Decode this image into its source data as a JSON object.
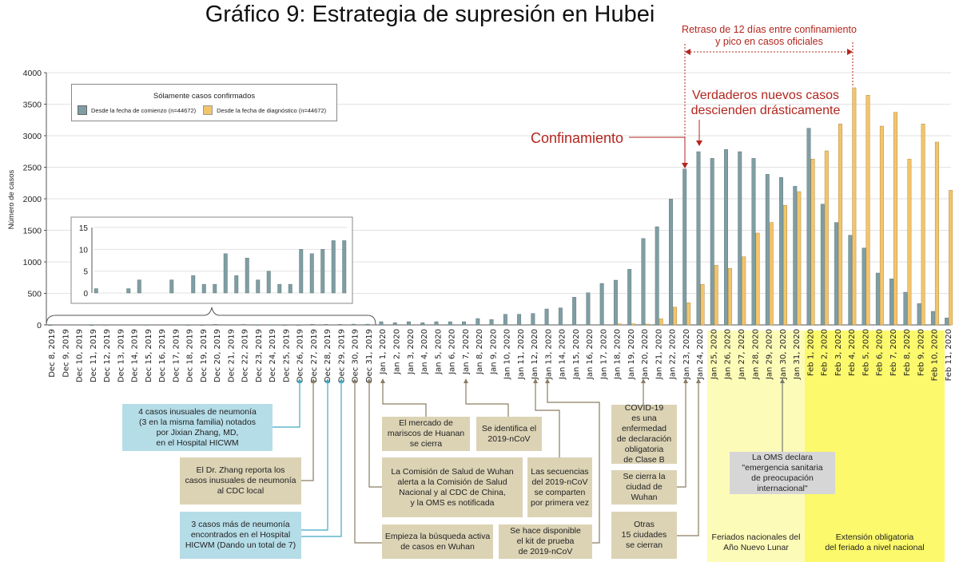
{
  "title": "Gráfico 9: Estrategia de supresión en Hubei",
  "annotations": {
    "delay": "Retraso de 12 días entre confinamiento\ny pico en casos oficiales",
    "lockdown": "Confinamiento",
    "drop": "Verdaderos nuevos casos\ndescienden drásticamente"
  },
  "legend": {
    "title": "Sólamente casos confirmados",
    "items": [
      "Desde la fecha de comienzo (n=44672)",
      "Desde la fecha de diagnóstico (n=44672)"
    ]
  },
  "colors": {
    "onset": "#7f9ea3",
    "diagnosis": "#f3c46b",
    "accent": "#b3261e",
    "lunar_band": "#fdfbb8",
    "extension_band": "#fcf96c"
  },
  "events": [
    {
      "text": "4 casos inusuales de neumonía\n(3 en la misma familia) notados\npor Jixian Zhang, MD,\nen el Hospital HICWM"
    },
    {
      "text": "El Dr. Zhang reporta los\ncasos inusuales de neumonía\nal CDC local"
    },
    {
      "text": "3 casos más de neumonía\nencontrados en el Hospital\nHICWM (Dando un total de 7)"
    },
    {
      "text": "El mercado de\nmariscos de Huanan\nse cierra"
    },
    {
      "text": "Se identifica el\n2019-nCoV"
    },
    {
      "text": "La Comisión de Salud de Wuhan\nalerta a la Comisión de Salud\nNacional y al CDC de China,\ny la OMS es notificada"
    },
    {
      "text": "Las secuencias\ndel 2019-nCoV\nse comparten\npor primera vez"
    },
    {
      "text": "Empieza la búsqueda activa\nde casos en Wuhan"
    },
    {
      "text": "Se hace disponible\nel kit de prueba\nde 2019-nCoV"
    },
    {
      "text": "COVID-19\nes una\nenfermedad\nde declaración\nobligatoria\nde Clase B"
    },
    {
      "text": "Se cierra la\nciudad de\nWuhan"
    },
    {
      "text": "Otras\n15 ciudades\nse cierran"
    },
    {
      "text": "La OMS declara\n\"emergencia sanitaria\nde preocupación\ninternacional\""
    }
  ],
  "bands": {
    "lunar": "Feriados nacionales del\nAño Nuevo Lunar",
    "extension": "Extensión obligatoria\ndel feriado a nivel nacional"
  },
  "chart_data": [
    {
      "type": "bar",
      "ylabel": "Número de casos",
      "ylim": [
        0,
        4000
      ],
      "yticks": [
        0,
        500,
        1000,
        1500,
        2000,
        2500,
        3000,
        3500,
        4000
      ],
      "grid": true,
      "legend": "top-left",
      "categories": [
        "Dec 8, 2019",
        "Dec 9, 2019",
        "Dec 10, 2019",
        "Dec 11, 2019",
        "Dec 12, 2019",
        "Dec 13, 2019",
        "Dec 14, 2019",
        "Dec 15, 2019",
        "Dec 16, 2019",
        "Dec 17, 2019",
        "Dec 18, 2019",
        "Dec 19, 2019",
        "Dec 20, 2019",
        "Dec 21, 2019",
        "Dec 22, 2019",
        "Dec 23, 2019",
        "Dec 24, 2019",
        "Dec 25, 2019",
        "Dec 26, 2019",
        "Dec 27, 2019",
        "Dec 28, 2019",
        "Dec 29, 2019",
        "Dec 30, 2019",
        "Dec 31, 2019",
        "Jan 1, 2020",
        "Jan 2, 2020",
        "Jan 3, 2020",
        "Jan 4, 2020",
        "Jan 5, 2020",
        "Jan 6, 2020",
        "Jan 7, 2020",
        "Jan 8, 2020",
        "Jan 9, 2020",
        "Jan 10, 2020",
        "Jan 11, 2020",
        "Jan 12, 2020",
        "Jan 13, 2020",
        "Jan 14, 2020",
        "Jan 15, 2020",
        "Jan 16, 2020",
        "Jan 17, 2020",
        "Jan 18, 2020",
        "Jan 19, 2020",
        "Jan 20, 2020",
        "Jan 21, 2020",
        "Jan 22, 2020",
        "Jan 23, 2020",
        "Jan 24, 2020",
        "Jan 25, 2020",
        "Jan 26, 2020",
        "Jan 27, 2020",
        "Jan 28, 2020",
        "Jan 29, 2020",
        "Jan 30, 2020",
        "Jan 31, 2020",
        "Feb 1, 2020",
        "Feb 2, 2020",
        "Feb 3, 2020",
        "Feb 4, 2020",
        "Feb 5, 2020",
        "Feb 6, 2020",
        "Feb 7, 2020",
        "Feb 8, 2020",
        "Feb 9, 2020",
        "Feb 10, 2020",
        "Feb 11, 2020"
      ],
      "series": [
        {
          "name": "Desde la fecha de comienzo (n=44672)",
          "values": [
            1,
            0,
            0,
            1,
            3,
            0,
            0,
            3,
            0,
            4,
            2,
            2,
            9,
            4,
            8,
            3,
            5,
            2,
            2,
            10,
            9,
            10,
            12,
            12,
            51,
            34,
            51,
            34,
            51,
            51,
            51,
            101,
            85,
            169,
            169,
            182,
            253,
            270,
            439,
            510,
            658,
            709,
            882,
            1371,
            1557,
            1996,
            2473,
            2747,
            2641,
            2781,
            2747,
            2641,
            2388,
            2338,
            2198,
            3119,
            1916,
            1625,
            1422,
            1219,
            823,
            730,
            519,
            338,
            215,
            110
          ]
        },
        {
          "name": "Desde la fecha de diagnóstico (n=44672)",
          "values": [
            0,
            0,
            0,
            0,
            0,
            0,
            0,
            0,
            0,
            0,
            0,
            0,
            0,
            0,
            0,
            0,
            0,
            0,
            0,
            0,
            0,
            0,
            0,
            0,
            0,
            0,
            0,
            0,
            0,
            0,
            0,
            0,
            0,
            0,
            0,
            0,
            0,
            0,
            0,
            0,
            0,
            17,
            17,
            13,
            97,
            283,
            350,
            641,
            945,
            895,
            1081,
            1456,
            1625,
            1895,
            2114,
            2629,
            2760,
            3186,
            3760,
            3642,
            3152,
            3372,
            2629,
            3186,
            2899,
            2135
          ]
        }
      ]
    },
    {
      "type": "bar",
      "ylim": [
        0,
        15
      ],
      "yticks": [
        0,
        5,
        10,
        15
      ],
      "categories": [
        "Dec 8, 2019",
        "Dec 9, 2019",
        "Dec 10, 2019",
        "Dec 11, 2019",
        "Dec 12, 2019",
        "Dec 13, 2019",
        "Dec 14, 2019",
        "Dec 15, 2019",
        "Dec 16, 2019",
        "Dec 17, 2019",
        "Dec 18, 2019",
        "Dec 19, 2019",
        "Dec 20, 2019",
        "Dec 21, 2019",
        "Dec 22, 2019",
        "Dec 23, 2019",
        "Dec 24, 2019",
        "Dec 25, 2019",
        "Dec 26, 2019",
        "Dec 27, 2019",
        "Dec 28, 2019",
        "Dec 29, 2019",
        "Dec 30, 2019",
        "Dec 31, 2019"
      ],
      "values": [
        1,
        0,
        0,
        1,
        3,
        0,
        0,
        3,
        0,
        4,
        2,
        2,
        9,
        4,
        8,
        3,
        5,
        2,
        2,
        10,
        9,
        10,
        12,
        12
      ]
    }
  ]
}
